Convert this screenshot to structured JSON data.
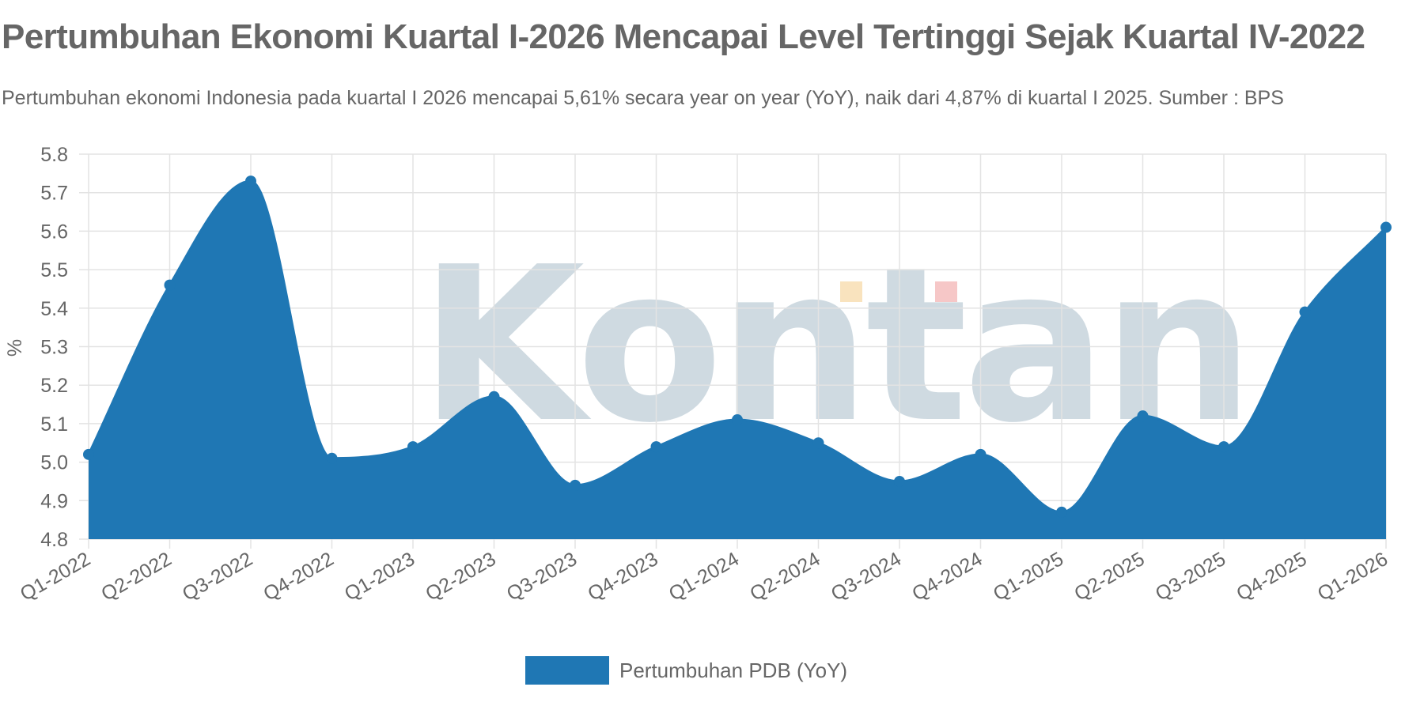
{
  "header": {
    "title": "Pertumbuhan Ekonomi Kuartal I-2026 Mencapai Level Tertinggi Sejak Kuartal IV-2022",
    "subtitle": "Pertumbuhan ekonomi Indonesia pada kuartal I 2026 mencapai 5,61% secara year on year (YoY), naik dari 4,87% di kuartal I 2025. Sumber : BPS"
  },
  "watermark": {
    "text": "Kontan",
    "color": "#c7d3dc"
  },
  "chart_data": {
    "type": "area",
    "categories": [
      "Q1-2022",
      "Q2-2022",
      "Q3-2022",
      "Q4-2022",
      "Q1-2023",
      "Q2-2023",
      "Q3-2023",
      "Q4-2023",
      "Q1-2024",
      "Q2-2024",
      "Q3-2024",
      "Q4-2024",
      "Q1-2025",
      "Q2-2025",
      "Q3-2025",
      "Q4-2025",
      "Q1-2026"
    ],
    "series": [
      {
        "name": "Pertumbuhan PDB (YoY)",
        "color": "#1f77b4",
        "values": [
          5.02,
          5.46,
          5.73,
          5.01,
          5.04,
          5.17,
          4.94,
          5.04,
          5.11,
          5.05,
          4.95,
          5.02,
          4.87,
          5.12,
          5.04,
          5.39,
          5.61
        ]
      }
    ],
    "xlabel": "",
    "ylabel": "%",
    "ylim": [
      4.8,
      5.8
    ],
    "yticks": [
      "5.8",
      "5.7",
      "5.6",
      "5.5",
      "5.4",
      "5.3",
      "5.2",
      "5.1",
      "5.0",
      "4.9",
      "4.8"
    ],
    "grid": true,
    "legend": "bottom-center",
    "smooth": true
  }
}
